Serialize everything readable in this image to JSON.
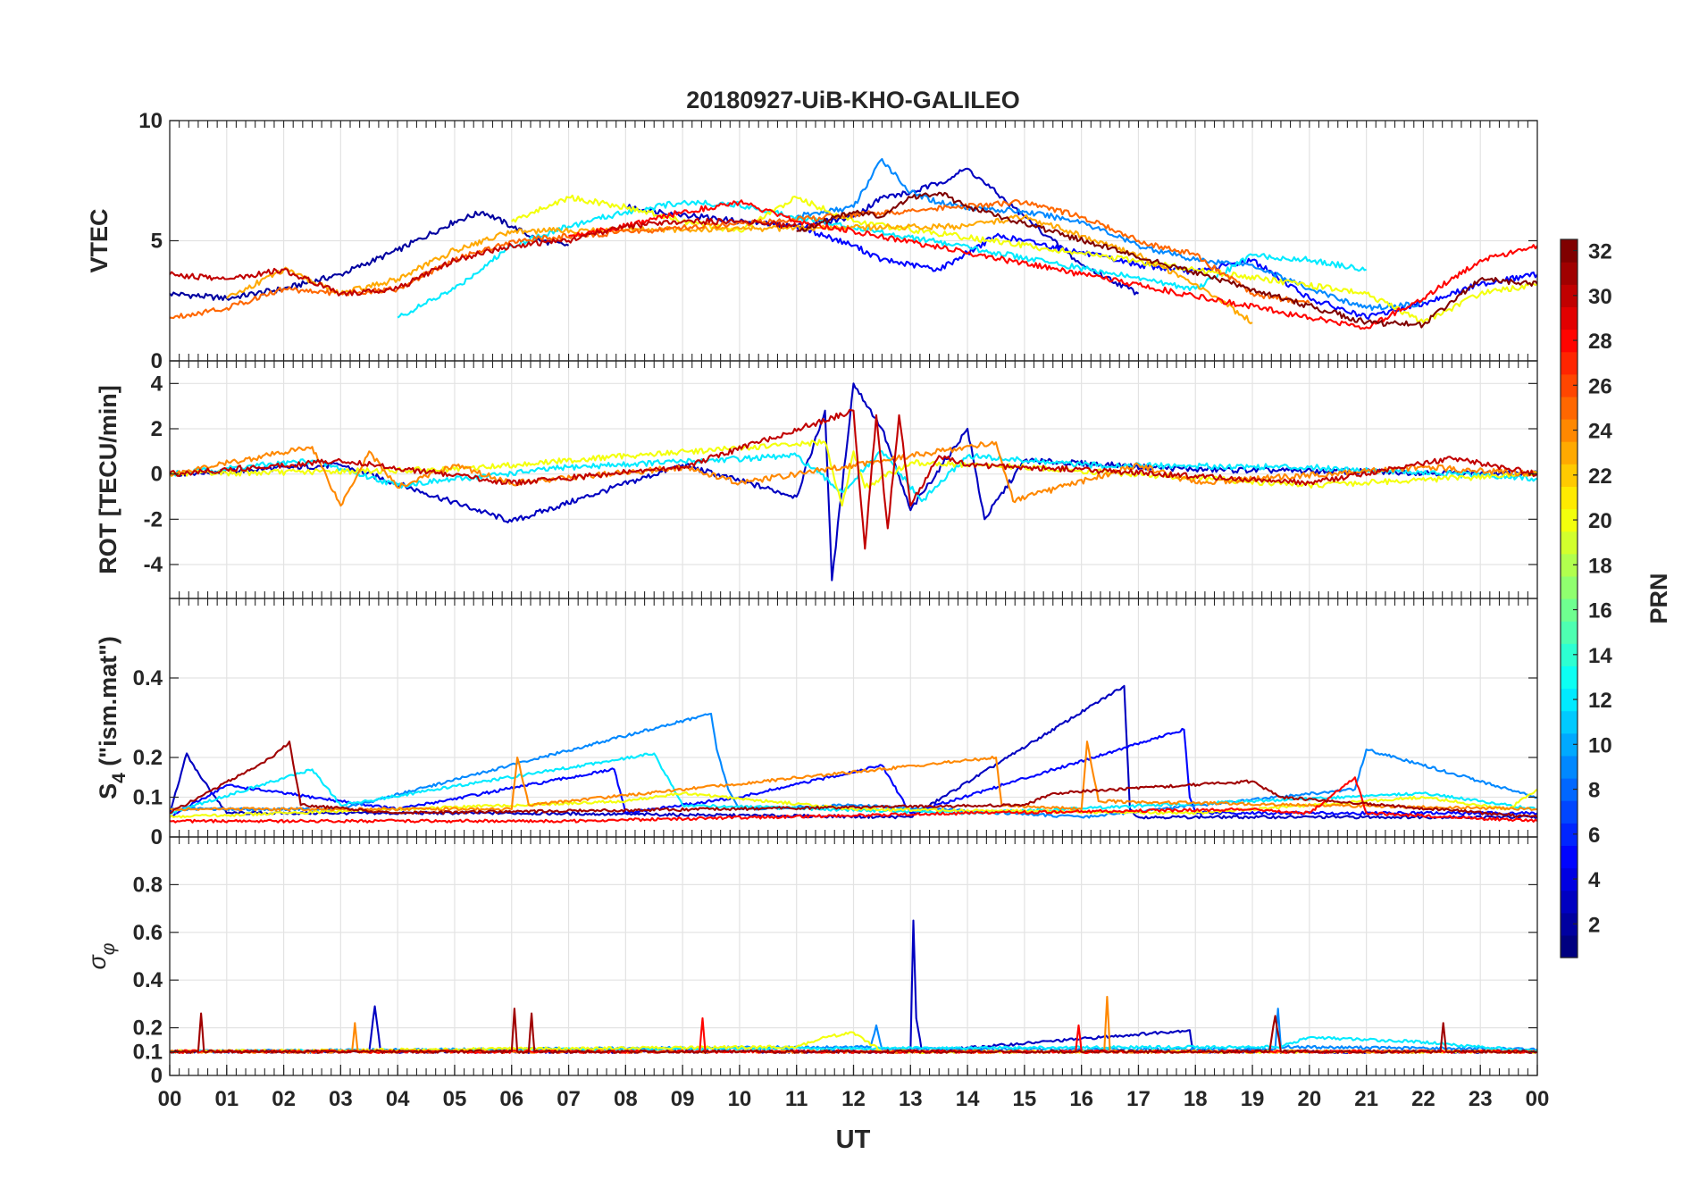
{
  "chart_data": {
    "type": "line",
    "title": "20180927-UiB-KHO-GALILEO",
    "xlabel": "UT",
    "x_ticks": [
      "00",
      "01",
      "02",
      "03",
      "04",
      "05",
      "06",
      "07",
      "08",
      "09",
      "10",
      "11",
      "12",
      "13",
      "14",
      "15",
      "16",
      "17",
      "18",
      "19",
      "20",
      "21",
      "22",
      "23",
      "00"
    ],
    "x_range_hours": [
      0,
      24
    ],
    "grid": true,
    "colorbar": {
      "label": "PRN",
      "range": [
        1,
        32
      ],
      "ticks": [
        "2",
        "4",
        "6",
        "8",
        "10",
        "12",
        "14",
        "16",
        "18",
        "20",
        "22",
        "24",
        "26",
        "28",
        "30",
        "32"
      ],
      "colormap": "jet",
      "position": "right"
    },
    "panels": [
      {
        "ylabel": "VTEC",
        "ylim": [
          0,
          10
        ],
        "yticks": [
          "0",
          "5",
          "10"
        ],
        "series": [
          {
            "prn": 2,
            "x": [
              0,
              1,
              2,
              3,
              4,
              5,
              5.5,
              6,
              6.5,
              7
            ],
            "y": [
              2.8,
              2.6,
              3.0,
              3.6,
              4.6,
              5.8,
              6.2,
              5.6,
              5.0,
              4.8
            ]
          },
          {
            "prn": 3,
            "x": [
              8,
              9,
              10,
              11,
              12,
              12.5,
              13,
              13.5,
              14,
              14.5,
              15,
              16,
              17
            ],
            "y": [
              6.4,
              6.1,
              5.8,
              5.6,
              6.0,
              6.8,
              7.0,
              7.4,
              8.0,
              7.0,
              6.0,
              4.0,
              2.8
            ]
          },
          {
            "prn": 5,
            "x": [
              11,
              12,
              12.5,
              13,
              13.5,
              14,
              14.5,
              15,
              16,
              17,
              18,
              19,
              20,
              21,
              22,
              23,
              24
            ],
            "y": [
              5.6,
              4.8,
              4.2,
              4.0,
              3.8,
              4.5,
              5.2,
              5.0,
              4.5,
              4.0,
              3.7,
              4.2,
              2.6,
              1.8,
              2.4,
              3.2,
              3.6
            ]
          },
          {
            "prn": 9,
            "x": [
              11,
              12,
              12.5,
              13,
              13.5,
              14,
              15,
              16,
              17,
              18,
              19,
              20,
              21,
              22
            ],
            "y": [
              6.0,
              6.4,
              8.4,
              7.0,
              6.6,
              6.4,
              6.2,
              5.8,
              4.8,
              4.2,
              4.0,
              3.0,
              2.2,
              2.4
            ]
          },
          {
            "prn": 12,
            "x": [
              4,
              5,
              6,
              7,
              8,
              9,
              10,
              11,
              18,
              19,
              20,
              21
            ],
            "y": [
              1.8,
              3.0,
              4.8,
              5.6,
              6.2,
              6.6,
              6.5,
              6.0,
              3.0,
              4.4,
              4.2,
              3.8
            ]
          },
          {
            "prn": 20,
            "x": [
              6,
              7,
              8,
              9,
              10,
              11,
              12,
              21,
              22,
              23,
              24
            ],
            "y": [
              5.8,
              6.8,
              6.4,
              5.8,
              5.4,
              6.8,
              5.8,
              2.8,
              1.6,
              2.8,
              3.2
            ]
          },
          {
            "prn": 23,
            "x": [
              1,
              2,
              3,
              4,
              5,
              6,
              14,
              15,
              16,
              17,
              18,
              19
            ],
            "y": [
              2.6,
              3.8,
              2.8,
              3.4,
              4.6,
              5.4,
              5.6,
              6.0,
              5.2,
              4.4,
              3.2,
              1.6
            ]
          },
          {
            "prn": 25,
            "x": [
              0,
              1,
              2,
              3,
              4,
              5,
              6,
              15,
              16,
              17,
              18,
              19,
              20
            ],
            "y": [
              1.8,
              2.2,
              3.0,
              2.8,
              3.0,
              4.2,
              5.0,
              6.6,
              6.0,
              5.0,
              4.4,
              2.8,
              2.4
            ]
          },
          {
            "prn": 28,
            "x": [
              7,
              8,
              9,
              10,
              11,
              12,
              20,
              21,
              22,
              23,
              24
            ],
            "y": [
              5.2,
              5.6,
              6.2,
              6.6,
              5.8,
              5.4,
              1.8,
              1.4,
              2.6,
              4.2,
              4.8
            ]
          },
          {
            "prn": 30,
            "x": [
              0,
              1,
              2,
              3,
              4,
              5,
              6,
              7,
              8,
              9,
              10,
              11
            ],
            "y": [
              3.6,
              3.4,
              3.8,
              2.8,
              3.0,
              4.2,
              4.8,
              5.0,
              5.6,
              5.8,
              5.8,
              5.6
            ]
          },
          {
            "prn": 32,
            "x": [
              11,
              12,
              12.5,
              13,
              13.5,
              14,
              21,
              22,
              23,
              24
            ],
            "y": [
              5.4,
              6.2,
              6.0,
              6.8,
              7.0,
              6.4,
              1.6,
              1.5,
              3.4,
              3.2
            ]
          }
        ]
      },
      {
        "ylabel": "ROT [TECU/min]",
        "ylim": [
          -5.5,
          5.0
        ],
        "yticks": [
          "-4",
          "-2",
          "0",
          "2",
          "4"
        ],
        "series": [
          {
            "prn": 3,
            "x": [
              0,
              3,
              6,
              9,
              11,
              11.5,
              11.62,
              12,
              12.5,
              13,
              14,
              14.3,
              15,
              18,
              24
            ],
            "y": [
              0,
              0.4,
              -2.1,
              0.4,
              -1.0,
              2.8,
              -4.7,
              4.0,
              2.0,
              -1.6,
              2.0,
              -2.0,
              0.6,
              0.2,
              0
            ]
          },
          {
            "prn": 12,
            "x": [
              0,
              2.5,
              4,
              7,
              11,
              11.8,
              12.5,
              13.2,
              14,
              16,
              20,
              24
            ],
            "y": [
              0,
              0.6,
              -0.5,
              0.3,
              0.8,
              -0.8,
              1.0,
              -1.2,
              0.8,
              0.4,
              0.3,
              -0.2
            ]
          },
          {
            "prn": 20,
            "x": [
              0,
              5,
              8,
              11.5,
              11.8,
              12,
              12.2,
              13,
              15,
              20,
              24
            ],
            "y": [
              0,
              0.2,
              0.8,
              1.4,
              -1.4,
              1.0,
              -0.6,
              0.5,
              0.3,
              -0.5,
              0
            ]
          },
          {
            "prn": 24,
            "x": [
              0,
              2.5,
              3,
              3.5,
              4,
              5,
              6,
              9,
              10,
              14.5,
              14.8,
              17,
              18,
              22,
              24
            ],
            "y": [
              0,
              1.2,
              -1.4,
              1.0,
              -0.6,
              0.4,
              -0.4,
              0.3,
              -0.4,
              1.4,
              -1.2,
              0.4,
              -0.4,
              0.3,
              0
            ]
          },
          {
            "prn": 30,
            "x": [
              0,
              3,
              6,
              9,
              12,
              12.2,
              12.4,
              12.6,
              12.8,
              13,
              13.5,
              14,
              16,
              20,
              22.5,
              24
            ],
            "y": [
              0,
              0.6,
              -0.4,
              0.3,
              2.8,
              -3.3,
              2.6,
              -2.4,
              2.6,
              -1.4,
              0.8,
              0.4,
              0.2,
              -0.4,
              0.7,
              0
            ]
          }
        ]
      },
      {
        "ylabel": "S_4 (\"ism.mat\")",
        "ylim": [
          0,
          0.6
        ],
        "yticks": [
          "0",
          "0.1",
          "0.2",
          "0.4"
        ],
        "series": [
          {
            "prn": 3,
            "x": [
              0,
              0.3,
              0.45,
              1,
              6,
              13,
              16.75,
              16.85,
              17,
              24
            ],
            "y": [
              0.06,
              0.21,
              0.17,
              0.06,
              0.06,
              0.05,
              0.38,
              0.07,
              0.05,
              0.05
            ]
          },
          {
            "prn": 5,
            "x": [
              0,
              1,
              4,
              7.8,
              8,
              10,
              12.5,
              13,
              17.8,
              17.9,
              18,
              24
            ],
            "y": [
              0.05,
              0.13,
              0.07,
              0.17,
              0.06,
              0.1,
              0.18,
              0.06,
              0.27,
              0.1,
              0.06,
              0.06
            ]
          },
          {
            "prn": 9,
            "x": [
              0,
              3,
              9.5,
              9.6,
              9.8,
              10,
              12,
              16,
              20.8,
              21,
              24
            ],
            "y": [
              0.07,
              0.07,
              0.31,
              0.22,
              0.12,
              0.07,
              0.08,
              0.05,
              0.12,
              0.22,
              0.1
            ]
          },
          {
            "prn": 12,
            "x": [
              0,
              2.5,
              3,
              8.5,
              9,
              14,
              19,
              22,
              24
            ],
            "y": [
              0.06,
              0.17,
              0.08,
              0.21,
              0.08,
              0.06,
              0.09,
              0.11,
              0.07
            ]
          },
          {
            "prn": 20,
            "x": [
              0,
              8,
              9,
              12,
              18,
              22,
              23.5,
              24
            ],
            "y": [
              0.05,
              0.09,
              0.11,
              0.07,
              0.06,
              0.1,
              0.07,
              0.12
            ]
          },
          {
            "prn": 24,
            "x": [
              0,
              6,
              6.1,
              6.3,
              14.5,
              14.6,
              16,
              16.1,
              16.3,
              24
            ],
            "y": [
              0.07,
              0.07,
              0.2,
              0.08,
              0.2,
              0.08,
              0.07,
              0.24,
              0.09,
              0.07
            ]
          },
          {
            "prn": 28,
            "x": [
              0,
              7,
              14,
              19,
              20,
              20.8,
              21,
              24
            ],
            "y": [
              0.04,
              0.04,
              0.06,
              0.07,
              0.06,
              0.15,
              0.06,
              0.04
            ]
          },
          {
            "prn": 31,
            "x": [
              0,
              1.8,
              2.1,
              2.3,
              4,
              15,
              15.5,
              19,
              19.5,
              24
            ],
            "y": [
              0.06,
              0.2,
              0.24,
              0.08,
              0.06,
              0.08,
              0.11,
              0.14,
              0.1,
              0.05
            ]
          }
        ]
      },
      {
        "ylabel": "σ_φ",
        "ylim": [
          0,
          1.0
        ],
        "yticks": [
          "0",
          "0.1",
          "0.2",
          "0.4",
          "0.6",
          "0.8"
        ],
        "series": [
          {
            "prn": 3,
            "x": [
              0,
              3.5,
              3.6,
              3.7,
              13,
              13.05,
              13.1,
              13.2,
              17.9,
              17.95,
              18,
              24
            ],
            "y": [
              0.1,
              0.1,
              0.29,
              0.1,
              0.1,
              0.65,
              0.24,
              0.1,
              0.19,
              0.11,
              0.1,
              0.1
            ]
          },
          {
            "prn": 9,
            "x": [
              0,
              12.3,
              12.4,
              12.5,
              19.4,
              19.45,
              19.5,
              24
            ],
            "y": [
              0.1,
              0.12,
              0.21,
              0.11,
              0.11,
              0.28,
              0.12,
              0.11
            ]
          },
          {
            "prn": 12,
            "x": [
              0,
              8,
              19.5,
              20,
              22,
              24
            ],
            "y": [
              0.1,
              0.11,
              0.12,
              0.16,
              0.14,
              0.1
            ]
          },
          {
            "prn": 20,
            "x": [
              0,
              11,
              11.5,
              12,
              12.5,
              24
            ],
            "y": [
              0.1,
              0.12,
              0.16,
              0.18,
              0.1,
              0.1
            ]
          },
          {
            "prn": 24,
            "x": [
              0,
              3.2,
              3.25,
              3.3,
              16.4,
              16.45,
              16.5,
              24
            ],
            "y": [
              0.1,
              0.1,
              0.22,
              0.1,
              0.1,
              0.33,
              0.1,
              0.1
            ]
          },
          {
            "prn": 28,
            "x": [
              0,
              9.3,
              9.35,
              9.4,
              15.9,
              15.95,
              16,
              24
            ],
            "y": [
              0.1,
              0.1,
              0.24,
              0.1,
              0.1,
              0.21,
              0.1,
              0.1
            ]
          },
          {
            "prn": 31,
            "x": [
              0,
              0.5,
              0.55,
              0.6,
              6,
              6.05,
              6.1,
              6.3,
              6.35,
              6.4,
              19.3,
              19.4,
              19.5,
              22.3,
              22.35,
              22.4,
              24
            ],
            "y": [
              0.1,
              0.1,
              0.26,
              0.1,
              0.1,
              0.28,
              0.1,
              0.1,
              0.26,
              0.1,
              0.1,
              0.25,
              0.1,
              0.1,
              0.22,
              0.1,
              0.1
            ]
          }
        ]
      }
    ]
  }
}
